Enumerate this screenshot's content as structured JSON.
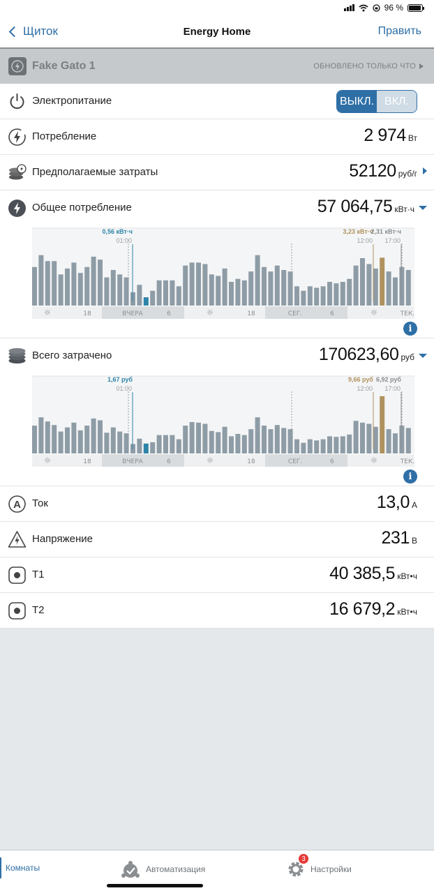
{
  "status_bar": {
    "battery": "96 %"
  },
  "nav": {
    "back_label": "Щиток",
    "title": "Energy Home",
    "edit_label": "Править"
  },
  "device": {
    "name": "Fake Gato 1",
    "status": "ОБНОВЛЕНО ТОЛЬКО ЧТО"
  },
  "rows": {
    "power": {
      "label": "Электропитание",
      "off_label": "ВЫКЛ.",
      "on_label": "ВКЛ.",
      "selected": "ВЫКЛ."
    },
    "consumption": {
      "label": "Потребление",
      "value": "2 974",
      "unit": "Вт"
    },
    "estimated_cost": {
      "label": "Предполагаемые затраты",
      "value": "52120",
      "unit": "руб/г"
    },
    "total_consumption": {
      "label": "Общее потребление",
      "value": "57 064,75",
      "unit": "кВт·ч"
    },
    "total_spent": {
      "label": "Всего затрачено",
      "value": "170623,60",
      "unit": "руб"
    },
    "current": {
      "label": "Ток",
      "value": "13,0",
      "unit": "А"
    },
    "voltage": {
      "label": "Напряжение",
      "value": "231",
      "unit": "В"
    },
    "t1": {
      "label": "T1",
      "value": "40 385,5",
      "unit": "кВт•ч"
    },
    "t2": {
      "label": "T2",
      "value": "16 679,2",
      "unit": "кВт•ч"
    }
  },
  "chart_data": [
    {
      "type": "bar",
      "values": [
        2.6,
        3.4,
        3.0,
        3.0,
        2.1,
        2.5,
        2.9,
        2.2,
        2.6,
        3.3,
        3.1,
        1.9,
        2.4,
        2.1,
        1.9,
        0.9,
        1.4,
        0.56,
        1.0,
        1.7,
        1.7,
        1.7,
        1.3,
        2.7,
        2.9,
        2.9,
        2.8,
        2.1,
        2.0,
        2.5,
        1.6,
        1.8,
        1.7,
        2.3,
        3.4,
        2.6,
        2.3,
        2.7,
        2.4,
        2.3,
        1.3,
        1.0,
        1.3,
        1.2,
        1.3,
        1.6,
        1.5,
        1.6,
        1.8,
        2.7,
        3.2,
        2.8,
        2.5,
        3.23,
        2.3,
        1.9,
        2.6,
        2.4
      ],
      "highlight_blue_index": 17,
      "highlight_gold_index": 53,
      "ylim": [
        0,
        4
      ],
      "annotations": [
        {
          "text": "0,56 кВт·ч",
          "time": "01:00",
          "color": "#2e84a8"
        },
        {
          "text": "3,23 кВт·ч",
          "time": "12:00",
          "color": "#b0925f"
        },
        {
          "text": "2,31 кВт·ч",
          "time": "17:00",
          "color": "#8a8e91"
        }
      ],
      "axis_labels": [
        "☼",
        "18",
        "ВЧЕРА",
        "6",
        "☼",
        "18",
        "СЕГ.",
        "6",
        "☼",
        "ТЕК."
      ]
    },
    {
      "type": "bar",
      "values": [
        4.7,
        6.1,
        5.4,
        4.8,
        3.7,
        4.4,
        5.2,
        3.9,
        4.7,
        5.9,
        5.6,
        3.5,
        4.4,
        3.7,
        3.4,
        1.6,
        2.5,
        1.67,
        1.9,
        3.1,
        3.1,
        3.1,
        2.4,
        4.7,
        5.3,
        5.2,
        5.0,
        3.8,
        3.6,
        4.5,
        2.9,
        3.3,
        3.1,
        4.1,
        6.1,
        4.7,
        4.1,
        4.8,
        4.3,
        4.1,
        2.4,
        1.8,
        2.4,
        2.2,
        2.4,
        2.9,
        2.8,
        2.9,
        3.2,
        5.5,
        5.2,
        5.0,
        4.5,
        9.66,
        4.1,
        3.4,
        4.7,
        4.3
      ],
      "highlight_blue_index": 17,
      "highlight_gold_index": 53,
      "ylim": [
        0,
        10
      ],
      "annotations": [
        {
          "text": "1,67 руб",
          "time": "01:00",
          "color": "#2e84a8"
        },
        {
          "text": "9,66 руб",
          "time": "12:00",
          "color": "#b0925f"
        },
        {
          "text": "6,92 руб",
          "time": "17:00",
          "color": "#8a8e91"
        }
      ],
      "axis_labels": [
        "☼",
        "18",
        "ВЧЕРА",
        "6",
        "☼",
        "18",
        "СЕГ.",
        "6",
        "☼",
        "ТЕК."
      ]
    }
  ],
  "tabs": {
    "rooms": "Комнаты",
    "automation": "Автоматизация",
    "settings": "Настройки",
    "settings_badge": "3"
  },
  "colors": {
    "accent": "#2e6fa6",
    "bar": "#8e9ca6",
    "blue_highlight": "#2e84a8",
    "gold_highlight": "#b0925f"
  }
}
